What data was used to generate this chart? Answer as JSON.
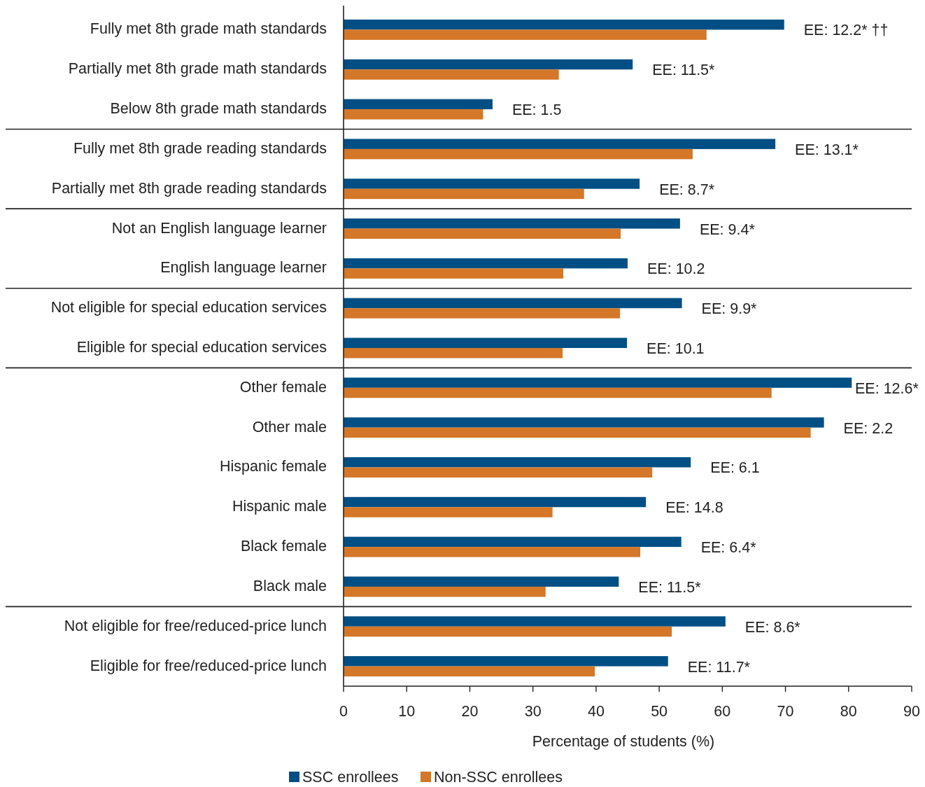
{
  "chart_data": {
    "type": "bar",
    "orientation": "horizontal",
    "xlabel": "Percentage of students (%)",
    "categories": [
      "Fully met 8th grade math standards",
      "Partially met 8th grade math standards",
      "Below 8th grade math standards",
      "Fully met 8th grade reading standards",
      "Partially met 8th grade reading standards",
      "Not an English language learner",
      "English language learner",
      "Not eligible for special education services",
      "Eligible for special education services",
      "Other female",
      "Other male",
      "Hispanic female",
      "Hispanic male",
      "Black female",
      "Black male",
      "Not eligible for free/reduced-price lunch",
      "Eligible for free/reduced-price lunch"
    ],
    "series": [
      {
        "name": "SSC enrollees",
        "color": "#004f84",
        "values": [
          69.8,
          45.8,
          23.6,
          68.4,
          46.9,
          53.3,
          45.0,
          53.6,
          44.9,
          80.5,
          76.1,
          55.0,
          47.9,
          53.5,
          43.6,
          60.5,
          51.4
        ]
      },
      {
        "name": "Non-SSC enrollees",
        "color": "#d47728",
        "values": [
          57.5,
          34.1,
          22.1,
          55.3,
          38.1,
          43.9,
          34.8,
          43.8,
          34.7,
          67.8,
          74.0,
          48.9,
          33.1,
          47.0,
          32.0,
          52.0,
          39.8
        ]
      }
    ],
    "xlim": [
      0,
      90
    ],
    "xticks": [
      0,
      10,
      20,
      30,
      40,
      50,
      60,
      70,
      80,
      90
    ],
    "grid": false,
    "legend": "bottom",
    "annotations": [
      "EE: 12.2* ††",
      "EE: 11.5*",
      "EE: 1.5",
      "EE: 13.1*",
      "EE: 8.7*",
      "EE: 9.4*",
      "EE: 10.2",
      "EE: 9.9*",
      "EE: 10.1",
      "EE: 12.6*",
      "EE: 2.2",
      "EE: 6.1",
      "EE: 14.8",
      "EE: 6.4*",
      "EE: 11.5*",
      "EE: 8.6*",
      "EE: 11.7*"
    ]
  }
}
